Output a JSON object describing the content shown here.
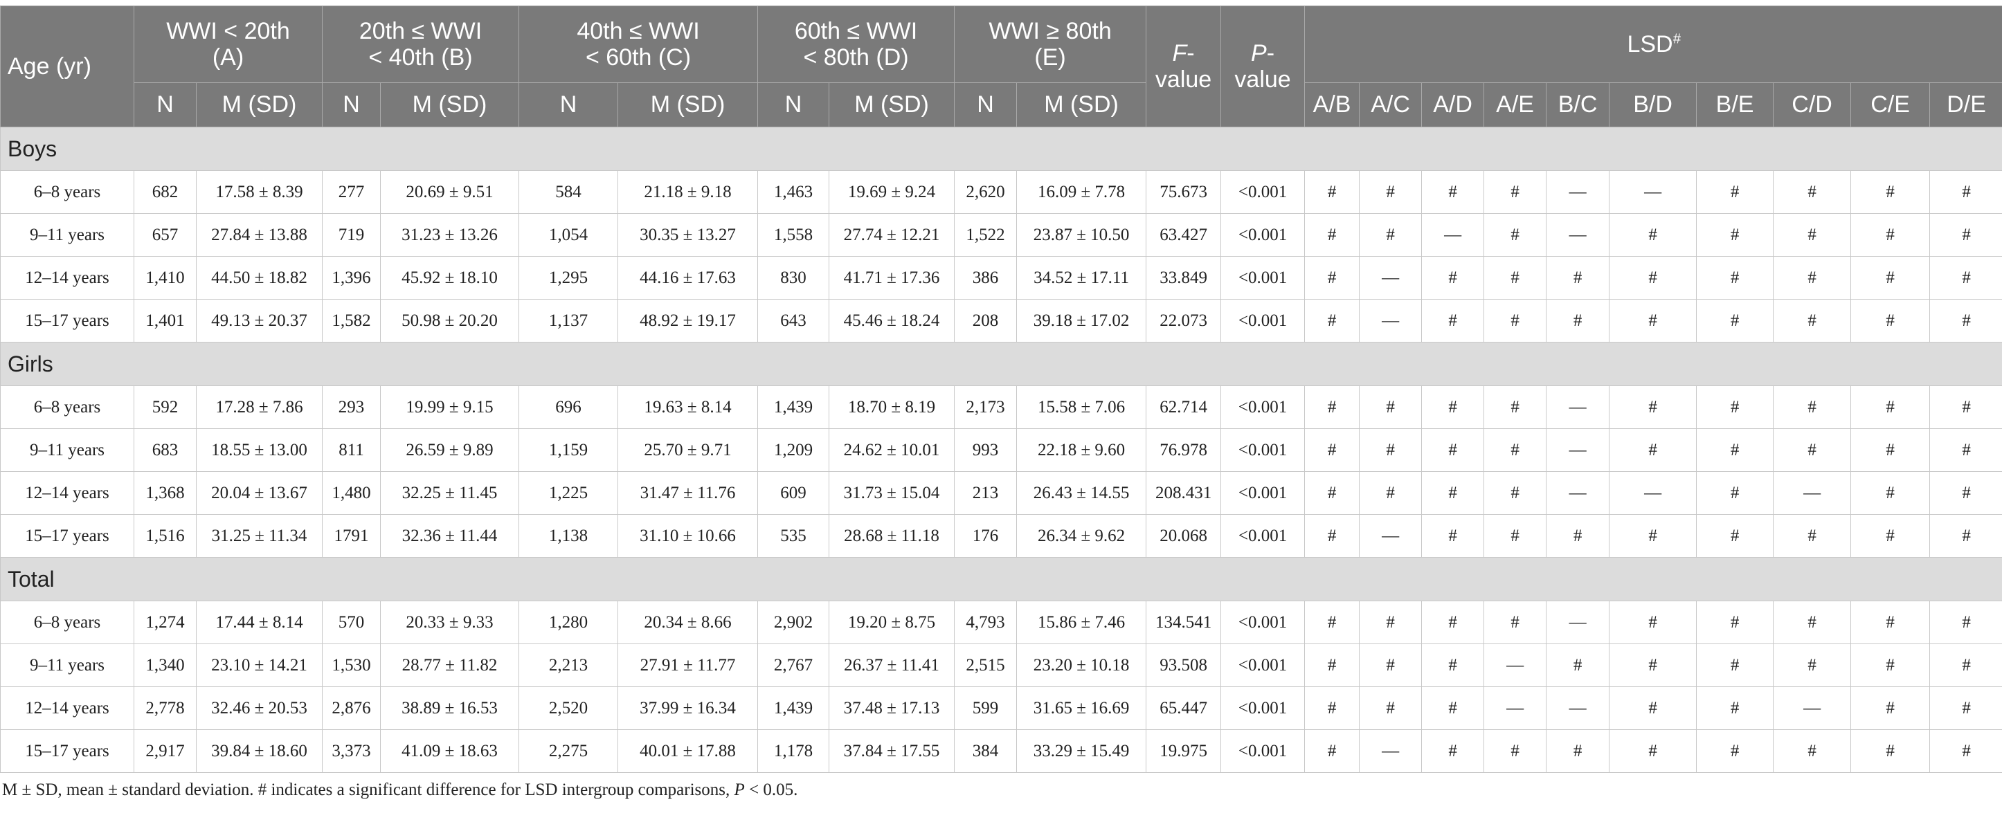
{
  "header": {
    "age": "Age (yr)",
    "groups": [
      {
        "line1": "WWI < 20th",
        "line2": "(A)"
      },
      {
        "line1": "20th ≤ WWI",
        "line2": "< 40th (B)"
      },
      {
        "line1": "40th ≤ WWI",
        "line2": "< 60th (C)"
      },
      {
        "line1": "60th ≤ WWI",
        "line2": "< 80th (D)"
      },
      {
        "line1": "WWI ≥ 80th",
        "line2": "(E)"
      }
    ],
    "f_italic": "F",
    "f_rest": "-value",
    "p_italic": "P",
    "p_rest": "-value",
    "lsd": "LSD",
    "lsd_sup": "#",
    "n_label": "N",
    "msd_label": "M (SD)",
    "comparisons": [
      "A/B",
      "A/C",
      "A/D",
      "A/E",
      "B/C",
      "B/D",
      "B/E",
      "C/D",
      "C/E",
      "D/E"
    ]
  },
  "sections": [
    {
      "label": "Boys",
      "rows": [
        {
          "age": "6–8 years",
          "cells": [
            "682",
            "17.58 ± 8.39",
            "277",
            "20.69 ± 9.51",
            "584",
            "21.18 ± 9.18",
            "1,463",
            "19.69 ± 9.24",
            "2,620",
            "16.09 ± 7.78"
          ],
          "f": "75.673",
          "p": "<0.001",
          "lsd": [
            "#",
            "#",
            "#",
            "#",
            "—",
            "—",
            "#",
            "#",
            "#",
            "#"
          ]
        },
        {
          "age": "9–11 years",
          "cells": [
            "657",
            "27.84 ± 13.88",
            "719",
            "31.23 ± 13.26",
            "1,054",
            "30.35 ± 13.27",
            "1,558",
            "27.74 ± 12.21",
            "1,522",
            "23.87 ± 10.50"
          ],
          "f": "63.427",
          "p": "<0.001",
          "lsd": [
            "#",
            "#",
            "—",
            "#",
            "—",
            "#",
            "#",
            "#",
            "#",
            "#"
          ]
        },
        {
          "age": "12–14 years",
          "cells": [
            "1,410",
            "44.50 ± 18.82",
            "1,396",
            "45.92 ± 18.10",
            "1,295",
            "44.16 ± 17.63",
            "830",
            "41.71 ± 17.36",
            "386",
            "34.52 ± 17.11"
          ],
          "f": "33.849",
          "p": "<0.001",
          "lsd": [
            "#",
            "—",
            "#",
            "#",
            "#",
            "#",
            "#",
            "#",
            "#",
            "#"
          ]
        },
        {
          "age": "15–17 years",
          "cells": [
            "1,401",
            "49.13 ± 20.37",
            "1,582",
            "50.98 ± 20.20",
            "1,137",
            "48.92 ± 19.17",
            "643",
            "45.46 ± 18.24",
            "208",
            "39.18 ± 17.02"
          ],
          "f": "22.073",
          "p": "<0.001",
          "lsd": [
            "#",
            "—",
            "#",
            "#",
            "#",
            "#",
            "#",
            "#",
            "#",
            "#"
          ]
        }
      ]
    },
    {
      "label": "Girls",
      "rows": [
        {
          "age": "6–8 years",
          "cells": [
            "592",
            "17.28 ± 7.86",
            "293",
            "19.99 ± 9.15",
            "696",
            "19.63 ± 8.14",
            "1,439",
            "18.70 ± 8.19",
            "2,173",
            "15.58 ± 7.06"
          ],
          "f": "62.714",
          "p": "<0.001",
          "lsd": [
            "#",
            "#",
            "#",
            "#",
            "—",
            "#",
            "#",
            "#",
            "#",
            "#"
          ]
        },
        {
          "age": "9–11 years",
          "cells": [
            "683",
            "18.55 ± 13.00",
            "811",
            "26.59 ± 9.89",
            "1,159",
            "25.70 ± 9.71",
            "1,209",
            "24.62 ± 10.01",
            "993",
            "22.18 ± 9.60"
          ],
          "f": "76.978",
          "p": "<0.001",
          "lsd": [
            "#",
            "#",
            "#",
            "#",
            "—",
            "#",
            "#",
            "#",
            "#",
            "#"
          ]
        },
        {
          "age": "12–14 years",
          "cells": [
            "1,368",
            "20.04 ± 13.67",
            "1,480",
            "32.25 ± 11.45",
            "1,225",
            "31.47 ± 11.76",
            "609",
            "31.73 ± 15.04",
            "213",
            "26.43 ± 14.55"
          ],
          "f": "208.431",
          "p": "<0.001",
          "lsd": [
            "#",
            "#",
            "#",
            "#",
            "—",
            "—",
            "#",
            "—",
            "#",
            "#"
          ]
        },
        {
          "age": "15–17 years",
          "cells": [
            "1,516",
            "31.25 ± 11.34",
            "1791",
            "32.36 ± 11.44",
            "1,138",
            "31.10 ± 10.66",
            "535",
            "28.68 ± 11.18",
            "176",
            "26.34 ± 9.62"
          ],
          "f": "20.068",
          "p": "<0.001",
          "lsd": [
            "#",
            "—",
            "#",
            "#",
            "#",
            "#",
            "#",
            "#",
            "#",
            "#"
          ]
        }
      ]
    },
    {
      "label": "Total",
      "rows": [
        {
          "age": "6–8 years",
          "cells": [
            "1,274",
            "17.44 ± 8.14",
            "570",
            "20.33 ± 9.33",
            "1,280",
            "20.34 ± 8.66",
            "2,902",
            "19.20 ± 8.75",
            "4,793",
            "15.86 ± 7.46"
          ],
          "f": "134.541",
          "p": "<0.001",
          "lsd": [
            "#",
            "#",
            "#",
            "#",
            "—",
            "#",
            "#",
            "#",
            "#",
            "#"
          ]
        },
        {
          "age": "9–11 years",
          "cells": [
            "1,340",
            "23.10 ± 14.21",
            "1,530",
            "28.77 ± 11.82",
            "2,213",
            "27.91 ± 11.77",
            "2,767",
            "26.37 ± 11.41",
            "2,515",
            "23.20 ± 10.18"
          ],
          "f": "93.508",
          "p": "<0.001",
          "lsd": [
            "#",
            "#",
            "#",
            "—",
            "#",
            "#",
            "#",
            "#",
            "#",
            "#"
          ]
        },
        {
          "age": "12–14 years",
          "cells": [
            "2,778",
            "32.46 ± 20.53",
            "2,876",
            "38.89 ± 16.53",
            "2,520",
            "37.99 ± 16.34",
            "1,439",
            "37.48 ± 17.13",
            "599",
            "31.65 ± 16.69"
          ],
          "f": "65.447",
          "p": "<0.001",
          "lsd": [
            "#",
            "#",
            "#",
            "—",
            "—",
            "#",
            "#",
            "—",
            "#",
            "#"
          ]
        },
        {
          "age": "15–17 years",
          "cells": [
            "2,917",
            "39.84 ± 18.60",
            "3,373",
            "41.09 ± 18.63",
            "2,275",
            "40.01 ± 17.88",
            "1,178",
            "37.84 ± 17.55",
            "384",
            "33.29 ± 15.49"
          ],
          "f": "19.975",
          "p": "<0.001",
          "lsd": [
            "#",
            "—",
            "#",
            "#",
            "#",
            "#",
            "#",
            "#",
            "#",
            "#"
          ]
        }
      ]
    }
  ],
  "footnote": {
    "text": "M ± SD, mean ± standard deviation. # indicates a significant difference for LSD intergroup comparisons, ",
    "p_italic": "P",
    "tail": " < 0.05."
  }
}
